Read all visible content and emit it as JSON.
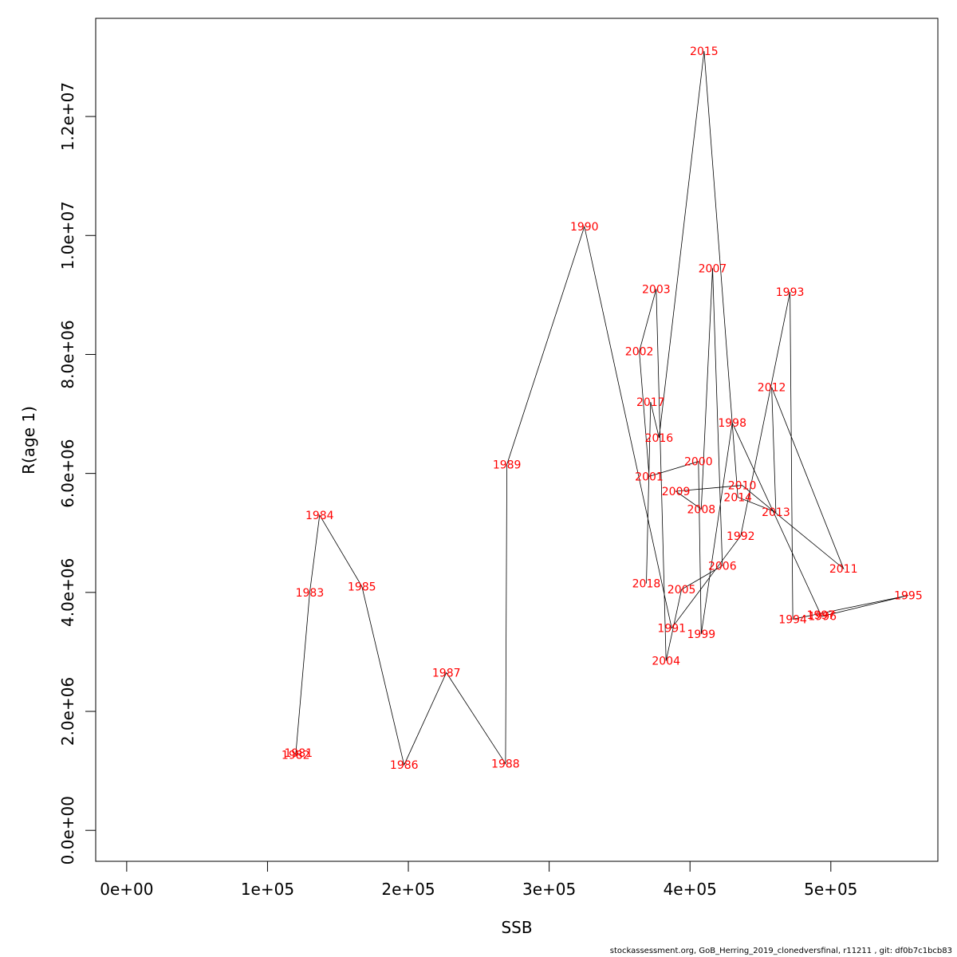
{
  "chart_data": {
    "type": "line",
    "xlabel": "SSB",
    "ylabel": "R(age 1)",
    "xlim": [
      -22000,
      576000
    ],
    "ylim": [
      -520000,
      13650000
    ],
    "xticks": [
      0,
      100000,
      200000,
      300000,
      400000,
      500000
    ],
    "xtick_labels": [
      "0e+00",
      "1e+05",
      "2e+05",
      "3e+05",
      "4e+05",
      "5e+05"
    ],
    "yticks": [
      0,
      2000000,
      4000000,
      6000000,
      8000000,
      10000000,
      12000000
    ],
    "ytick_labels": [
      "0.0e+00",
      "2.0e+06",
      "4.0e+06",
      "6.0e+06",
      "8.0e+06",
      "1.0e+07",
      "1.2e+07"
    ],
    "line_color": "#000000",
    "label_color": "#ff0000",
    "points": [
      {
        "year": "1981",
        "ssb": 122000,
        "r": 1300000
      },
      {
        "year": "1982",
        "ssb": 120000,
        "r": 1270000
      },
      {
        "year": "1983",
        "ssb": 130000,
        "r": 4000000
      },
      {
        "year": "1984",
        "ssb": 137000,
        "r": 5300000
      },
      {
        "year": "1985",
        "ssb": 167000,
        "r": 4100000
      },
      {
        "year": "1986",
        "ssb": 197000,
        "r": 1100000
      },
      {
        "year": "1987",
        "ssb": 227000,
        "r": 2650000
      },
      {
        "year": "1988",
        "ssb": 269000,
        "r": 1120000
      },
      {
        "year": "1989",
        "ssb": 270000,
        "r": 6150000
      },
      {
        "year": "1990",
        "ssb": 325000,
        "r": 10150000
      },
      {
        "year": "1991",
        "ssb": 387000,
        "r": 3400000
      },
      {
        "year": "1992",
        "ssb": 436000,
        "r": 4950000
      },
      {
        "year": "1993",
        "ssb": 471000,
        "r": 9050000
      },
      {
        "year": "1994",
        "ssb": 473000,
        "r": 3550000
      },
      {
        "year": "1995",
        "ssb": 555000,
        "r": 3950000
      },
      {
        "year": "1996",
        "ssb": 494000,
        "r": 3600000
      },
      {
        "year": "1997",
        "ssb": 493000,
        "r": 3620000
      },
      {
        "year": "1998",
        "ssb": 430000,
        "r": 6850000
      },
      {
        "year": "1999",
        "ssb": 408000,
        "r": 3300000
      },
      {
        "year": "2000",
        "ssb": 406000,
        "r": 6200000
      },
      {
        "year": "2001",
        "ssb": 371000,
        "r": 5950000
      },
      {
        "year": "2002",
        "ssb": 364000,
        "r": 8050000
      },
      {
        "year": "2003",
        "ssb": 376000,
        "r": 9100000
      },
      {
        "year": "2004",
        "ssb": 383000,
        "r": 2850000
      },
      {
        "year": "2005",
        "ssb": 394000,
        "r": 4050000
      },
      {
        "year": "2006",
        "ssb": 423000,
        "r": 4450000
      },
      {
        "year": "2007",
        "ssb": 416000,
        "r": 9450000
      },
      {
        "year": "2008",
        "ssb": 408000,
        "r": 5400000
      },
      {
        "year": "2009",
        "ssb": 390000,
        "r": 5700000
      },
      {
        "year": "2010",
        "ssb": 437000,
        "r": 5800000
      },
      {
        "year": "2011",
        "ssb": 509000,
        "r": 4400000
      },
      {
        "year": "2012",
        "ssb": 458000,
        "r": 7450000
      },
      {
        "year": "2013",
        "ssb": 461000,
        "r": 5350000
      },
      {
        "year": "2014",
        "ssb": 434000,
        "r": 5600000
      },
      {
        "year": "2015",
        "ssb": 410000,
        "r": 13100000
      },
      {
        "year": "2016",
        "ssb": 378000,
        "r": 6600000
      },
      {
        "year": "2017",
        "ssb": 372000,
        "r": 7200000
      },
      {
        "year": "2018",
        "ssb": 369000,
        "r": 4150000
      }
    ]
  },
  "footer": "stockassessment.org, GoB_Herring_2019_clonedversfinal, r11211 , git: df0b7c1bcb83"
}
